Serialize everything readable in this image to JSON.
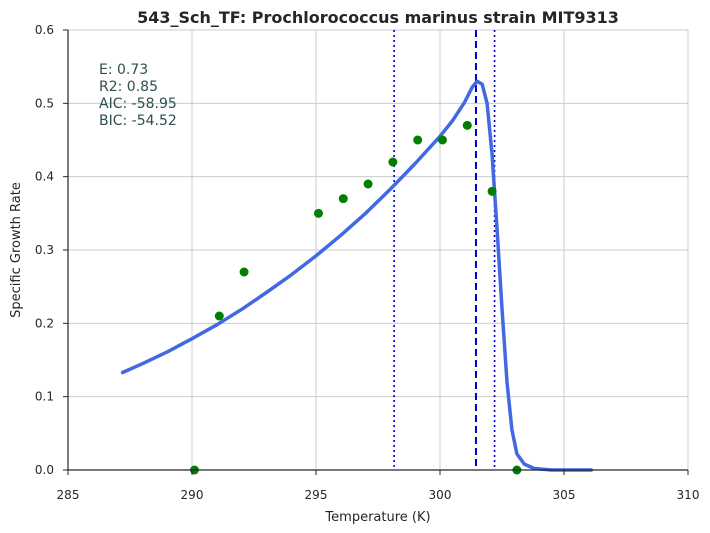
{
  "chart_data": {
    "type": "scatter",
    "title": "543_Sch_TF: Prochlorococcus marinus strain MIT9313",
    "xlabel": "Temperature (K)",
    "ylabel": "Specific Growth Rate",
    "xlim": [
      285,
      310
    ],
    "ylim": [
      0.0,
      0.6
    ],
    "x_ticks": [
      285,
      290,
      295,
      300,
      305,
      310
    ],
    "y_ticks": [
      0.0,
      0.1,
      0.2,
      0.3,
      0.4,
      0.5,
      0.6
    ],
    "x_tick_labels": [
      "285",
      "290",
      "295",
      "300",
      "305",
      "310"
    ],
    "y_tick_labels": [
      "0.0",
      "0.1",
      "0.2",
      "0.3",
      "0.4",
      "0.5",
      "0.6"
    ],
    "grid": true,
    "observed": {
      "color": "#008000",
      "points": [
        {
          "x": 290.1,
          "y": 0.0
        },
        {
          "x": 291.1,
          "y": 0.21
        },
        {
          "x": 292.1,
          "y": 0.27
        },
        {
          "x": 295.1,
          "y": 0.35
        },
        {
          "x": 296.1,
          "y": 0.37
        },
        {
          "x": 297.1,
          "y": 0.39
        },
        {
          "x": 298.1,
          "y": 0.42
        },
        {
          "x": 299.1,
          "y": 0.45
        },
        {
          "x": 300.1,
          "y": 0.45
        },
        {
          "x": 301.1,
          "y": 0.47
        },
        {
          "x": 302.1,
          "y": 0.38
        },
        {
          "x": 303.1,
          "y": 0.0
        }
      ]
    },
    "fitted_curve": {
      "color": "#4169e1",
      "points": [
        {
          "x": 287.2,
          "y": 0.133
        },
        {
          "x": 288.0,
          "y": 0.145
        },
        {
          "x": 289.0,
          "y": 0.161
        },
        {
          "x": 290.0,
          "y": 0.179
        },
        {
          "x": 291.0,
          "y": 0.198
        },
        {
          "x": 292.0,
          "y": 0.219
        },
        {
          "x": 293.0,
          "y": 0.242
        },
        {
          "x": 294.0,
          "y": 0.266
        },
        {
          "x": 295.0,
          "y": 0.292
        },
        {
          "x": 296.0,
          "y": 0.32
        },
        {
          "x": 297.0,
          "y": 0.35
        },
        {
          "x": 298.0,
          "y": 0.383
        },
        {
          "x": 299.0,
          "y": 0.418
        },
        {
          "x": 300.0,
          "y": 0.455
        },
        {
          "x": 300.5,
          "y": 0.476
        },
        {
          "x": 301.0,
          "y": 0.502
        },
        {
          "x": 301.3,
          "y": 0.522
        },
        {
          "x": 301.5,
          "y": 0.53
        },
        {
          "x": 301.7,
          "y": 0.526
        },
        {
          "x": 301.9,
          "y": 0.5
        },
        {
          "x": 302.1,
          "y": 0.43
        },
        {
          "x": 302.3,
          "y": 0.33
        },
        {
          "x": 302.5,
          "y": 0.22
        },
        {
          "x": 302.7,
          "y": 0.12
        },
        {
          "x": 302.9,
          "y": 0.055
        },
        {
          "x": 303.1,
          "y": 0.022
        },
        {
          "x": 303.4,
          "y": 0.008
        },
        {
          "x": 303.8,
          "y": 0.002
        },
        {
          "x": 304.5,
          "y": 0.0
        },
        {
          "x": 306.1,
          "y": 0.0
        }
      ]
    },
    "vertical_lines": [
      {
        "x": 298.15,
        "style": "dotted",
        "color": "#0000cd"
      },
      {
        "x": 301.45,
        "style": "dashed",
        "color": "#0000cd"
      },
      {
        "x": 302.2,
        "style": "dotted",
        "color": "#0000cd"
      }
    ],
    "annotations": [
      "E:  0.73",
      "R2:  0.85",
      "AIC: -58.95",
      "BIC: -54.52"
    ]
  }
}
